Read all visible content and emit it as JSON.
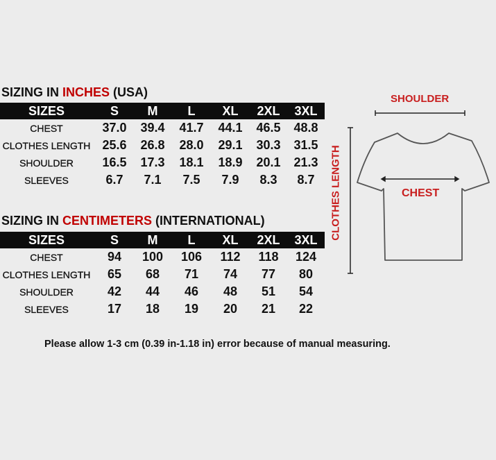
{
  "inches": {
    "title_prefix": "SIZING IN ",
    "title_highlight": "INCHES",
    "title_suffix": " (USA)",
    "header": [
      "SIZES",
      "S",
      "M",
      "L",
      "XL",
      "2XL",
      "3XL"
    ],
    "rows": [
      {
        "label": "CHEST",
        "values": [
          "37.0",
          "39.4",
          "41.7",
          "44.1",
          "46.5",
          "48.8"
        ]
      },
      {
        "label": "CLOTHES LENGTH",
        "values": [
          "25.6",
          "26.8",
          "28.0",
          "29.1",
          "30.3",
          "31.5"
        ]
      },
      {
        "label": "SHOULDER",
        "values": [
          "16.5",
          "17.3",
          "18.1",
          "18.9",
          "20.1",
          "21.3"
        ]
      },
      {
        "label": "SLEEVES",
        "values": [
          "6.7",
          "7.1",
          "7.5",
          "7.9",
          "8.3",
          "8.7"
        ]
      }
    ]
  },
  "centimeters": {
    "title_prefix": "SIZING IN ",
    "title_highlight": "CENTIMETERS",
    "title_suffix": " (INTERNATIONAL)",
    "header": [
      "SIZES",
      "S",
      "M",
      "L",
      "XL",
      "2XL",
      "3XL"
    ],
    "rows": [
      {
        "label": "CHEST",
        "values": [
          "94",
          "100",
          "106",
          "112",
          "118",
          "124"
        ]
      },
      {
        "label": "CLOTHES LENGTH",
        "values": [
          "65",
          "68",
          "71",
          "74",
          "77",
          "80"
        ]
      },
      {
        "label": "SHOULDER",
        "values": [
          "42",
          "44",
          "46",
          "48",
          "51",
          "54"
        ]
      },
      {
        "label": "SLEEVES",
        "values": [
          "17",
          "18",
          "19",
          "20",
          "21",
          "22"
        ]
      }
    ]
  },
  "diagram": {
    "shoulder_label": "SHOULDER",
    "chest_label": "CHEST",
    "length_label": "CLOTHES LENGTH",
    "label_color": "#c81e1e"
  },
  "note": "Please allow 1-3 cm (0.39 in-1.18 in) error because of manual measuring.",
  "colors": {
    "highlight": "#c00000",
    "header_bg": "#0d0d0d",
    "background": "#ececec"
  }
}
